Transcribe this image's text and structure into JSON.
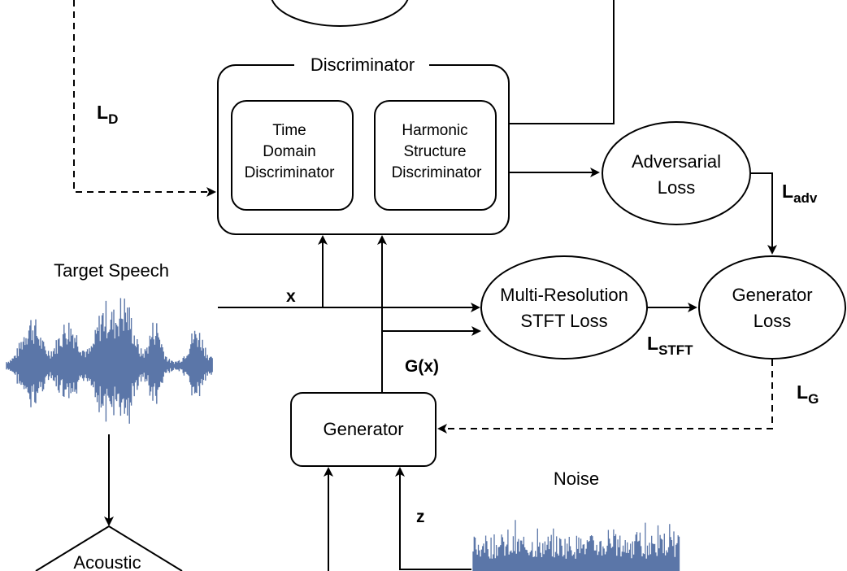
{
  "discriminator": {
    "title": "Discriminator",
    "time_domain": [
      "Time",
      "Domain",
      "Discriminator"
    ],
    "harmonic_structure": [
      "Harmonic",
      "Structure",
      "Discriminator"
    ]
  },
  "adversarial_loss": [
    "Adversarial",
    "Loss"
  ],
  "stft_loss": [
    "Multi-Resolution",
    "STFT Loss"
  ],
  "generator_loss": [
    "Generator",
    "Loss"
  ],
  "generator": "Generator",
  "target_speech": "Target Speech",
  "noise": "Noise",
  "acoustic": "Acoustic",
  "edge_labels": {
    "x": "x",
    "gx": "G(x)",
    "z": "z",
    "ld": {
      "main": "L",
      "sub": "D"
    },
    "ladv": {
      "main": "L",
      "sub": "adv"
    },
    "lstft": {
      "main": "L",
      "sub": "STFT"
    },
    "lg": {
      "main": "L",
      "sub": "G"
    }
  },
  "colors": {
    "waveform": "#5b76a8",
    "line": "#000000"
  }
}
